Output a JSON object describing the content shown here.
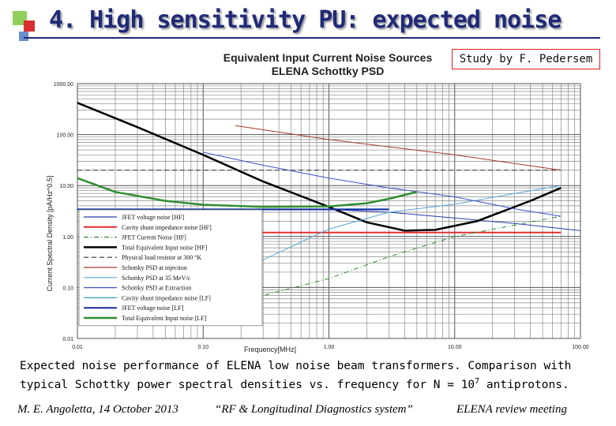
{
  "slide": {
    "title": "4. High sensitivity PU: expected noise",
    "author_note": "Study by F. Pedersem",
    "caption_parts": [
      "Expected noise performance of ELENA low noise beam transformers. Comparison with typical Schottky power spectral densities vs. frequency for N = 10",
      "7",
      " antiprotons."
    ],
    "footer": {
      "left": "M. E. Angoletta, 14 October 2013",
      "center": "“RF & Longitudinal Diagnostics system”",
      "right": "ELENA review meeting"
    },
    "colors": {
      "title": "#1f2a78",
      "deco_green": "#8fcf5a",
      "deco_red": "#d83030",
      "deco_blue": "#6a8fd0"
    }
  },
  "chart_data": {
    "type": "line",
    "title": "Equivalent Input Current Noise Sources",
    "subtitle": "ELENA Schottky PSD",
    "xlabel": "Frequency[MHz]",
    "ylabel": "Current Spectral Density [pA/Hz^0.5]",
    "x_scale": "log",
    "y_scale": "log",
    "xlim": [
      0.01,
      100
    ],
    "ylim": [
      0.01,
      1000
    ],
    "x_ticks": [
      0.01,
      0.1,
      1,
      10,
      100
    ],
    "x_tick_labels": [
      "0.01",
      "0.10",
      "1.00",
      "10.00",
      "100.00"
    ],
    "y_ticks": [
      0.01,
      0.1,
      1,
      10,
      100,
      1000
    ],
    "y_tick_labels": [
      "0.01",
      "0.10",
      "1.00",
      "10.00",
      "100.00",
      "1000.00"
    ],
    "grid": true,
    "legend_position": "bottom-left",
    "series": [
      {
        "name": "JFET voltage noise [HF]",
        "color": "#2b3fa8",
        "style": "solid",
        "width": 1,
        "x": [
          0.18,
          1,
          3,
          10,
          30,
          100
        ],
        "y": [
          3.3,
          3.4,
          3.0,
          2.3,
          1.8,
          1.3
        ]
      },
      {
        "name": "Cavity shunt impedance noise [HF]",
        "color": "#e03030",
        "style": "solid",
        "width": 2,
        "x": [
          0.18,
          1,
          3,
          10,
          70
        ],
        "y": [
          1.2,
          1.2,
          1.2,
          1.2,
          1.2
        ]
      },
      {
        "name": "JFET Current Noise [HF]",
        "color": "#2e8b2e",
        "style": "dashdot",
        "width": 1,
        "x": [
          0.18,
          1,
          3,
          10,
          70
        ],
        "y": [
          0.05,
          0.15,
          0.4,
          1.0,
          2.5
        ]
      },
      {
        "name": "Total Equivalent Input noise [HF]",
        "color": "#000000",
        "style": "solid",
        "width": 2.5,
        "x": [
          0.01,
          0.03,
          0.1,
          0.3,
          1,
          2,
          4,
          7,
          15,
          40,
          70
        ],
        "y": [
          420,
          140,
          40,
          12,
          3.8,
          1.9,
          1.3,
          1.35,
          2.0,
          5.0,
          9.0
        ]
      },
      {
        "name": "Physical load resistor at 300 °K",
        "color": "#333333",
        "style": "dashed",
        "width": 1,
        "x": [
          0.01,
          0.1,
          1,
          10,
          70
        ],
        "y": [
          20,
          20,
          20,
          20,
          20
        ]
      },
      {
        "name": "Schottky PSD at injection",
        "color": "#a33a2a",
        "style": "solid",
        "width": 1,
        "x": [
          0.18,
          1,
          10,
          70
        ],
        "y": [
          150,
          80,
          40,
          20
        ]
      },
      {
        "name": "Schottky PSD at 35 MeV/c",
        "color": "#5aa7d6",
        "style": "solid",
        "width": 1,
        "x": [
          0.1,
          0.3,
          1,
          3,
          10,
          30,
          70
        ],
        "y": [
          0.025,
          0.35,
          1.4,
          3.0,
          4.3,
          7.0,
          10
        ]
      },
      {
        "name": "Schottky PSD at Extraction",
        "color": "#4050c8",
        "style": "solid",
        "width": 1,
        "x": [
          0.1,
          0.3,
          1,
          3,
          10,
          30,
          70
        ],
        "y": [
          45,
          25,
          14,
          9.0,
          6.0,
          3.5,
          2.5
        ]
      },
      {
        "name": "Cavity shunt impedance noise [LF]",
        "color": "#2a9ad0",
        "style": "solid",
        "width": 1,
        "x": [
          0.01,
          0.03,
          0.1,
          0.3,
          1,
          2,
          3
        ],
        "y": [
          3.5,
          3.5,
          3.5,
          3.5,
          3.5,
          3.5,
          3.5
        ]
      },
      {
        "name": "JFET voltage noise [LF]",
        "color": "#1a2aa0",
        "style": "solid",
        "width": 2,
        "x": [
          0.01,
          0.03,
          0.1,
          0.3,
          1,
          2,
          3
        ],
        "y": [
          3.4,
          3.4,
          3.4,
          3.4,
          3.4,
          3.4,
          3.4
        ]
      },
      {
        "name": "Total Equivalent Input noise [LF]",
        "color": "#2e8f2e",
        "style": "solid",
        "width": 2.5,
        "x": [
          0.01,
          0.02,
          0.05,
          0.1,
          0.3,
          1,
          2,
          3,
          5
        ],
        "y": [
          14,
          7.5,
          5.0,
          4.2,
          3.8,
          3.9,
          4.5,
          5.5,
          7.5
        ]
      }
    ]
  }
}
